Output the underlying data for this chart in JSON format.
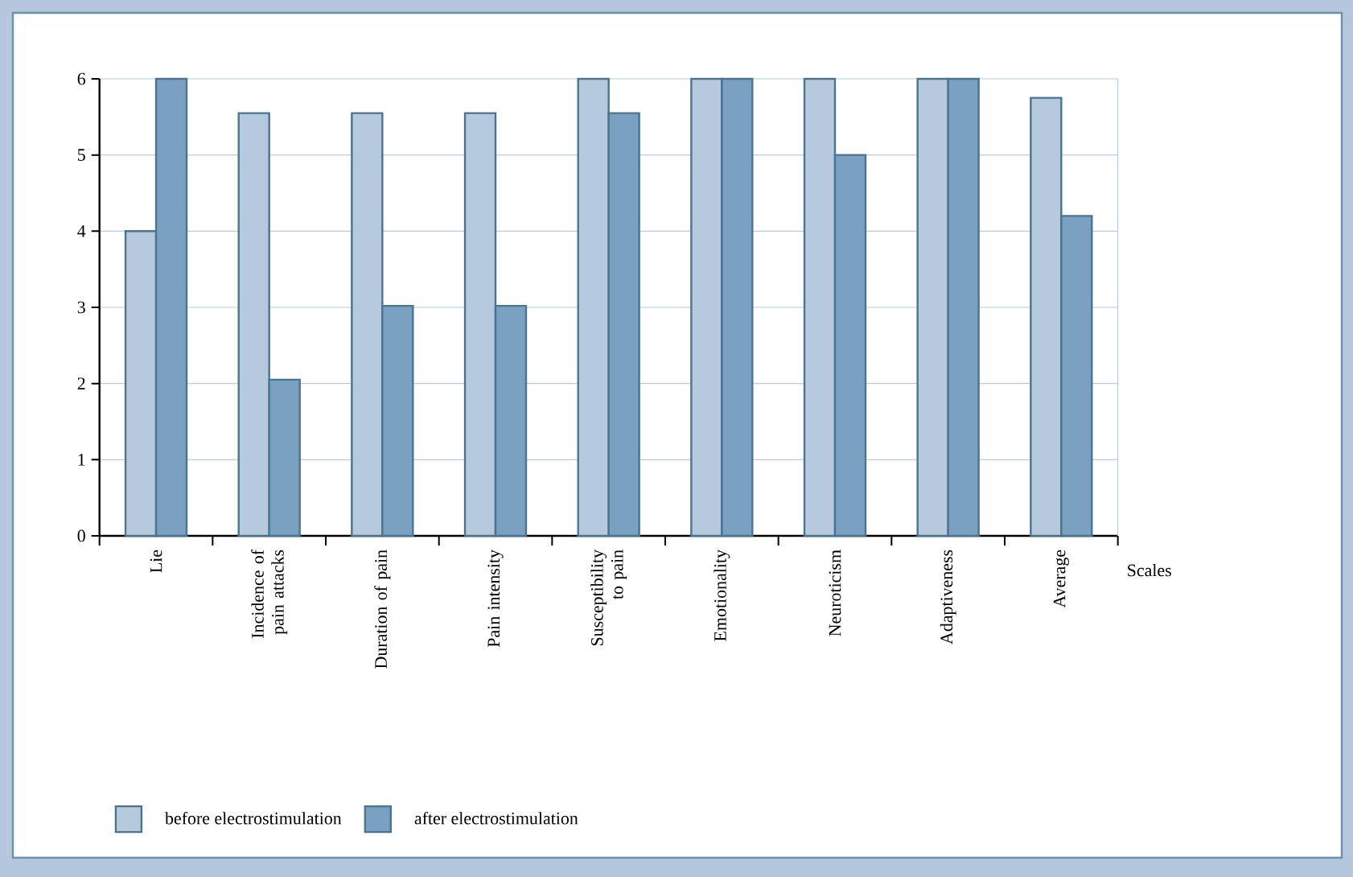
{
  "chart_data": {
    "type": "bar",
    "xlabel": "Scales",
    "categories": [
      "Lie",
      "Incidence of pain attacks",
      "Duration of pain",
      "Pain intensity",
      "Susceptibility to pain",
      "Emotionality",
      "Neuroticism",
      "Adaptiveness",
      "Average"
    ],
    "series": [
      {
        "name": "before electrostimulation",
        "color": "#b7c9dd",
        "values": [
          4.0,
          5.55,
          5.55,
          5.55,
          6.0,
          6.0,
          6.0,
          6.0,
          5.75
        ]
      },
      {
        "name": "after electrostimulation",
        "color": "#7aa0c2",
        "values": [
          6.0,
          2.05,
          3.02,
          3.02,
          5.55,
          6.0,
          5.0,
          6.0,
          4.2
        ]
      }
    ],
    "ylim": [
      0,
      6
    ],
    "yticks": [
      0,
      1,
      2,
      3,
      4,
      5,
      6
    ],
    "grid": "y",
    "legend": "bottom"
  }
}
